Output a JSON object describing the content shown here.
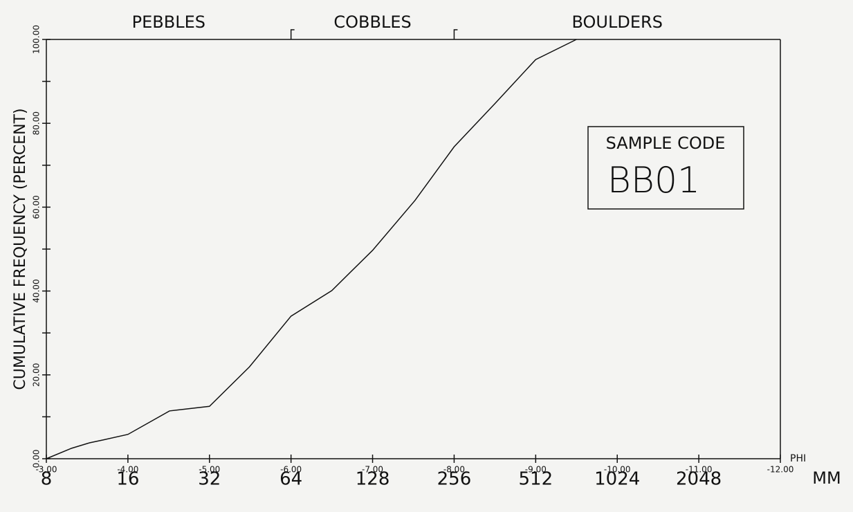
{
  "chart_data": {
    "type": "line",
    "ylabel": "CUMULATIVE FREQUENCY (PERCENT)",
    "xlabel": "PHI",
    "x2label": "MM",
    "xlim": [
      -3,
      -12
    ],
    "ylim": [
      0,
      100
    ],
    "xticks": [
      {
        "value": -3,
        "label": "-3.00"
      },
      {
        "value": -4,
        "label": "-4.00"
      },
      {
        "value": -5,
        "label": "-5.00"
      },
      {
        "value": -6,
        "label": "-6.00"
      },
      {
        "value": -7,
        "label": "-7.00"
      },
      {
        "value": -8,
        "label": "-8.00"
      },
      {
        "value": -9,
        "label": "-9.00"
      },
      {
        "value": -10,
        "label": "-10.00"
      },
      {
        "value": -11,
        "label": "-11.00"
      },
      {
        "value": -12,
        "label": "-12.00"
      }
    ],
    "mm_labels": [
      8,
      16,
      32,
      64,
      128,
      256,
      512,
      1024,
      2048
    ],
    "yticks": [
      {
        "value": 0,
        "label": "0.00"
      },
      {
        "value": 20,
        "label": "20.00"
      },
      {
        "value": 40,
        "label": "40.00"
      },
      {
        "value": 60,
        "label": "60.00"
      },
      {
        "value": 80,
        "label": "80.00"
      },
      {
        "value": 100,
        "label": "100.00"
      }
    ],
    "yminorticks": [
      10,
      30,
      50,
      70,
      90
    ],
    "size_classes": [
      {
        "label": "PEBBLES",
        "from": -3,
        "to": -6
      },
      {
        "label": "COBBLES",
        "from": -6,
        "to": -8
      },
      {
        "label": "BOULDERS",
        "from": -8,
        "to": -12
      }
    ],
    "legend_title": "SAMPLE CODE",
    "legend_value": "BB01",
    "color": "#111111",
    "x": [
      -3,
      -3.31,
      -3.53,
      -3.7,
      -4,
      -4.51,
      -5,
      -5.49,
      -6,
      -6.5,
      -7,
      -7.52,
      -8,
      -8.5,
      -9,
      -9.5
    ],
    "values": [
      0,
      2.5,
      3.8,
      4.5,
      5.8,
      11.4,
      12.5,
      21.9,
      34.0,
      40.1,
      49.7,
      61.6,
      74.4,
      84.7,
      95.2,
      100
    ]
  }
}
